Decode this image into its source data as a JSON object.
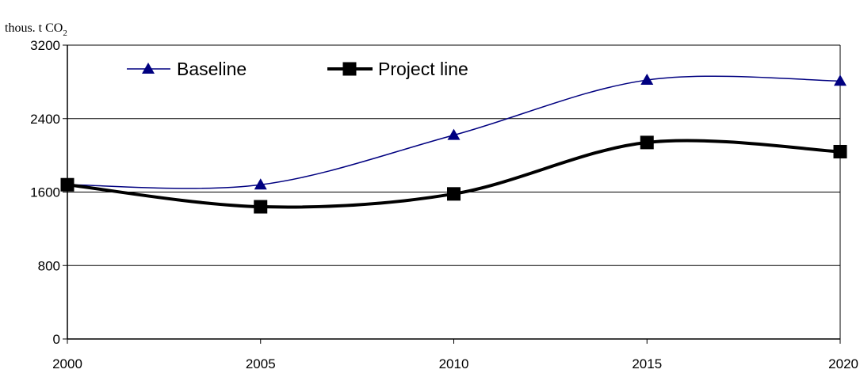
{
  "chart_data": {
    "type": "line",
    "ylabel": {
      "main": "thous. t CO",
      "subscript": "2"
    },
    "xlabel": "",
    "x": [
      2000,
      2005,
      2010,
      2015,
      2020
    ],
    "x_tick_labels": [
      "2000",
      "2005",
      "2010",
      "2015",
      "2020"
    ],
    "y_tick_labels": [
      "0",
      "800",
      "1600",
      "2400",
      "3200"
    ],
    "ylim": [
      0,
      3200
    ],
    "yticks": [
      0,
      800,
      1600,
      2400,
      3200
    ],
    "grid": "horizontal",
    "smooth": true,
    "legend_placement": "top-left",
    "series": [
      {
        "name": "Baseline",
        "values": [
          1680,
          1680,
          2220,
          2820,
          2810
        ],
        "color": "#000080",
        "marker": "triangle"
      },
      {
        "name": "Project line",
        "values": [
          1680,
          1440,
          1580,
          2140,
          2040
        ],
        "color": "#000000",
        "marker": "square"
      }
    ]
  }
}
